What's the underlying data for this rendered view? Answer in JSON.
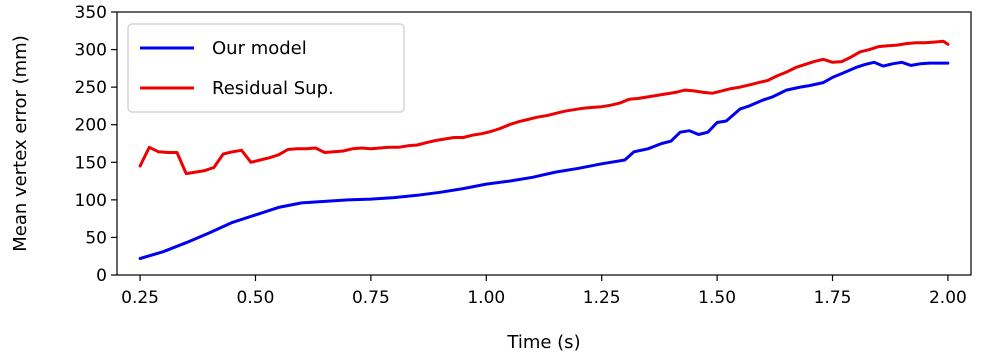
{
  "chart_data": {
    "type": "line",
    "xlabel": "Time (s)",
    "ylabel": "Mean vertex error (mm)",
    "xlim": [
      0.2,
      2.05
    ],
    "ylim": [
      0,
      350
    ],
    "xticks": [
      "0.25",
      "0.50",
      "0.75",
      "1.00",
      "1.25",
      "1.50",
      "1.75",
      "2.00"
    ],
    "yticks": [
      "0",
      "50",
      "100",
      "150",
      "200",
      "250",
      "300",
      "350"
    ],
    "grid": false,
    "legend_position": "top-left",
    "series": [
      {
        "name": "Our model",
        "color": "#0000ee",
        "x": [
          0.25,
          0.3,
          0.35,
          0.4,
          0.45,
          0.5,
          0.55,
          0.6,
          0.65,
          0.7,
          0.75,
          0.8,
          0.85,
          0.9,
          0.95,
          1.0,
          1.05,
          1.1,
          1.15,
          1.2,
          1.25,
          1.3,
          1.32,
          1.35,
          1.38,
          1.4,
          1.42,
          1.44,
          1.46,
          1.48,
          1.5,
          1.52,
          1.55,
          1.57,
          1.6,
          1.62,
          1.65,
          1.68,
          1.7,
          1.73,
          1.75,
          1.77,
          1.8,
          1.82,
          1.84,
          1.86,
          1.88,
          1.9,
          1.92,
          1.94,
          1.96,
          1.98,
          2.0
        ],
        "values": [
          22,
          31,
          43,
          56,
          70,
          80,
          90,
          96,
          98,
          100,
          101,
          103,
          106,
          110,
          115,
          121,
          125,
          130,
          137,
          142,
          148,
          153,
          164,
          168,
          175,
          178,
          190,
          192,
          187,
          190,
          203,
          205,
          221,
          225,
          233,
          237,
          246,
          250,
          252,
          256,
          263,
          268,
          276,
          280,
          283,
          278,
          281,
          283,
          279,
          281,
          282,
          282,
          282
        ]
      },
      {
        "name": "Residual Sup.",
        "color": "#ee0000",
        "x": [
          0.25,
          0.27,
          0.29,
          0.31,
          0.33,
          0.35,
          0.37,
          0.39,
          0.41,
          0.43,
          0.45,
          0.47,
          0.49,
          0.51,
          0.53,
          0.55,
          0.57,
          0.59,
          0.61,
          0.63,
          0.65,
          0.67,
          0.69,
          0.71,
          0.73,
          0.75,
          0.77,
          0.79,
          0.81,
          0.83,
          0.85,
          0.87,
          0.89,
          0.91,
          0.93,
          0.95,
          0.97,
          0.99,
          1.01,
          1.03,
          1.05,
          1.07,
          1.09,
          1.11,
          1.13,
          1.15,
          1.17,
          1.19,
          1.21,
          1.23,
          1.25,
          1.27,
          1.29,
          1.31,
          1.33,
          1.35,
          1.37,
          1.39,
          1.41,
          1.43,
          1.45,
          1.47,
          1.49,
          1.51,
          1.53,
          1.55,
          1.57,
          1.59,
          1.61,
          1.63,
          1.65,
          1.67,
          1.69,
          1.71,
          1.73,
          1.75,
          1.77,
          1.79,
          1.81,
          1.83,
          1.85,
          1.87,
          1.89,
          1.91,
          1.93,
          1.95,
          1.97,
          1.99,
          2.0
        ],
        "values": [
          145,
          170,
          164,
          163,
          163,
          135,
          137,
          139,
          143,
          161,
          164,
          166,
          150,
          153,
          156,
          160,
          167,
          168,
          168,
          169,
          163,
          164,
          165,
          168,
          169,
          168,
          169,
          170,
          170,
          172,
          173,
          176,
          179,
          181,
          183,
          183,
          186,
          188,
          191,
          195,
          200,
          204,
          207,
          210,
          212,
          215,
          218,
          220,
          222,
          223,
          224,
          226,
          229,
          234,
          235,
          237,
          239,
          241,
          243,
          246,
          245,
          243,
          242,
          245,
          248,
          250,
          253,
          256,
          259,
          265,
          270,
          276,
          280,
          284,
          287,
          283,
          284,
          290,
          297,
          300,
          304,
          305,
          306,
          308,
          309,
          309,
          310,
          311,
          307
        ]
      }
    ]
  }
}
